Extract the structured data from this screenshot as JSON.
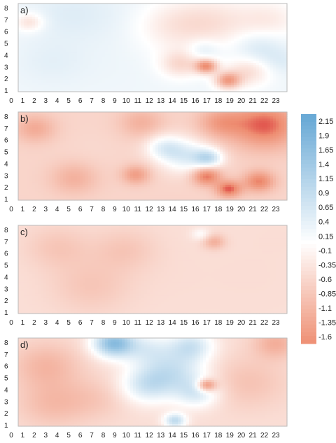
{
  "chart_data": {
    "type": "heatmap",
    "colorbar": {
      "ticks": [
        "2.15",
        "1.9",
        "1.65",
        "1.4",
        "1.15",
        "0.9",
        "0.65",
        "0.4",
        "0.15",
        "-0.1",
        "-0.35",
        "-0.6",
        "-0.85",
        "-1.1",
        "-1.35",
        "-1.6"
      ],
      "range": [
        -1.6,
        2.3
      ],
      "colors": {
        "high": "#6aaad6",
        "mid": "#ffffff",
        "low": "#ee8e72"
      }
    },
    "panels": [
      {
        "label": "a)",
        "x_ticks": [
          "0",
          "1",
          "2",
          "3",
          "4",
          "5",
          "6",
          "7",
          "8",
          "9",
          "10",
          "11",
          "12",
          "13",
          "14",
          "15",
          "16",
          "17",
          "18",
          "19",
          "20",
          "21",
          "22",
          "23"
        ],
        "y_ticks": [
          "8",
          "7",
          "6",
          "5",
          "4",
          "3",
          "2",
          "1"
        ],
        "base": 0.35,
        "blobs": [
          {
            "x": 4,
            "y": 7.6,
            "v": 0.4,
            "r": 2.5
          },
          {
            "x": 9.5,
            "y": 7,
            "v": 0.3,
            "r": 3
          },
          {
            "x": 0.5,
            "y": 6.8,
            "v": -0.5,
            "r": 0.9
          },
          {
            "x": 2.5,
            "y": 3.2,
            "v": 0.35,
            "r": 2.2
          },
          {
            "x": 7.5,
            "y": 2.5,
            "v": 0.2,
            "r": 2.5
          },
          {
            "x": 13,
            "y": 6.5,
            "v": -0.35,
            "r": 2.5
          },
          {
            "x": 17,
            "y": 6.8,
            "v": -0.4,
            "r": 2.5
          },
          {
            "x": 22,
            "y": 7,
            "v": -0.3,
            "r": 2
          },
          {
            "x": 21,
            "y": 4.5,
            "v": 0.6,
            "r": 1.6
          },
          {
            "x": 16,
            "y": 4.3,
            "v": 0.6,
            "r": 1.0
          },
          {
            "x": 16.3,
            "y": 2.8,
            "v": -1.6,
            "r": 0.7
          },
          {
            "x": 18.2,
            "y": 1.5,
            "v": -1.4,
            "r": 0.8
          },
          {
            "x": 14,
            "y": 3,
            "v": -0.6,
            "r": 1.3
          },
          {
            "x": 20,
            "y": 2.3,
            "v": -0.55,
            "r": 1.4
          },
          {
            "x": 23,
            "y": 3.2,
            "v": 0.4,
            "r": 1.2
          }
        ]
      },
      {
        "label": "b)",
        "x_ticks": [
          "0",
          "1",
          "2",
          "3",
          "4",
          "5",
          "6",
          "7",
          "8",
          "9",
          "10",
          "11",
          "12",
          "13",
          "14",
          "15",
          "16",
          "17",
          "18",
          "19",
          "20",
          "21",
          "22",
          "23"
        ],
        "y_ticks": [
          "8",
          "7",
          "6",
          "5",
          "4",
          "3",
          "2",
          "1"
        ],
        "base": -0.5,
        "blobs": [
          {
            "x": 21.5,
            "y": 7.3,
            "v": -1.6,
            "r": 2.2
          },
          {
            "x": 17.5,
            "y": 7.5,
            "v": -1.0,
            "r": 1.4
          },
          {
            "x": 1,
            "y": 7,
            "v": -0.9,
            "r": 1.3
          },
          {
            "x": 10.5,
            "y": 7.5,
            "v": -0.8,
            "r": 1.4
          },
          {
            "x": 14.5,
            "y": 4.5,
            "v": 0.8,
            "r": 1.6
          },
          {
            "x": 12.5,
            "y": 5.3,
            "v": 0.6,
            "r": 1.2
          },
          {
            "x": 16.5,
            "y": 4.3,
            "v": 1.0,
            "r": 0.9
          },
          {
            "x": 16.3,
            "y": 2.7,
            "v": -1.6,
            "r": 0.9
          },
          {
            "x": 18.3,
            "y": 1.5,
            "v": -1.6,
            "r": 0.8
          },
          {
            "x": 21,
            "y": 2.2,
            "v": -1.4,
            "r": 1.0
          },
          {
            "x": 10,
            "y": 2.8,
            "v": -1.1,
            "r": 0.9
          },
          {
            "x": 4.5,
            "y": 2.5,
            "v": -0.8,
            "r": 1.5
          },
          {
            "x": 6,
            "y": 5,
            "v": -0.2,
            "r": 2
          }
        ]
      },
      {
        "label": "c)",
        "x_ticks": [
          "0",
          "1",
          "2",
          "3",
          "4",
          "5",
          "6",
          "7",
          "8",
          "9",
          "10",
          "11",
          "12",
          "13",
          "14",
          "15",
          "16",
          "17",
          "18",
          "19",
          "20",
          "21",
          "22",
          "23"
        ],
        "y_ticks": [
          "8",
          "7",
          "6",
          "5",
          "4",
          "3",
          "2",
          "1"
        ],
        "base": -0.35,
        "blobs": [
          {
            "x": 17,
            "y": 7,
            "v": -0.9,
            "r": 0.7
          },
          {
            "x": 15.8,
            "y": 7.7,
            "v": 0.3,
            "r": 0.6
          },
          {
            "x": 3,
            "y": 6.5,
            "v": -0.55,
            "r": 2
          },
          {
            "x": 9,
            "y": 6.3,
            "v": -0.55,
            "r": 2
          },
          {
            "x": 13,
            "y": 4,
            "v": -0.2,
            "r": 2.5
          },
          {
            "x": 6,
            "y": 3,
            "v": -0.55,
            "r": 2.5
          },
          {
            "x": 20,
            "y": 4,
            "v": -0.2,
            "r": 2.5
          },
          {
            "x": 22.5,
            "y": 7.3,
            "v": -0.2,
            "r": 1.5
          }
        ]
      },
      {
        "label": "d)",
        "x_ticks": [
          "0",
          "1",
          "2",
          "3",
          "4",
          "5",
          "6",
          "7",
          "8",
          "9",
          "10",
          "11",
          "12",
          "13",
          "14",
          "15",
          "16",
          "17",
          "18",
          "19",
          "20",
          "21",
          "22",
          "23"
        ],
        "y_ticks": [
          "8",
          "7",
          "6",
          "5",
          "4",
          "3",
          "2",
          "1"
        ],
        "base": -0.35,
        "blobs": [
          {
            "x": 8,
            "y": 8,
            "v": 1.9,
            "r": 1.3
          },
          {
            "x": 11,
            "y": 7.5,
            "v": 0.6,
            "r": 1.6
          },
          {
            "x": 15,
            "y": 7.8,
            "v": 0.9,
            "r": 1.4
          },
          {
            "x": 13.5,
            "y": 5.5,
            "v": 0.9,
            "r": 2.0
          },
          {
            "x": 11,
            "y": 4.2,
            "v": 0.9,
            "r": 1.7
          },
          {
            "x": 15.5,
            "y": 3.5,
            "v": 0.8,
            "r": 1.4
          },
          {
            "x": 16.3,
            "y": 4.2,
            "v": -1.8,
            "r": 0.6
          },
          {
            "x": 13.5,
            "y": 1,
            "v": 1.2,
            "r": 0.7
          },
          {
            "x": 2,
            "y": 6,
            "v": -0.8,
            "r": 2.2
          },
          {
            "x": 2.5,
            "y": 2.5,
            "v": -0.7,
            "r": 2.2
          },
          {
            "x": 22.5,
            "y": 8,
            "v": -0.9,
            "r": 1.4
          },
          {
            "x": 20,
            "y": 4.5,
            "v": -0.6,
            "r": 2.5
          },
          {
            "x": 6.5,
            "y": 3,
            "v": -0.5,
            "r": 2
          }
        ]
      }
    ]
  }
}
